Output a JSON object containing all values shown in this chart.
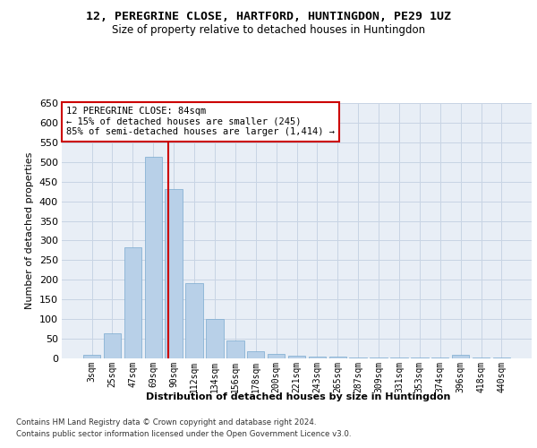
{
  "title": "12, PEREGRINE CLOSE, HARTFORD, HUNTINGDON, PE29 1UZ",
  "subtitle": "Size of property relative to detached houses in Huntingdon",
  "xlabel": "Distribution of detached houses by size in Huntingdon",
  "ylabel": "Number of detached properties",
  "bar_color": "#b8d0e8",
  "bar_edge_color": "#7aaacf",
  "categories": [
    "3sqm",
    "25sqm",
    "47sqm",
    "69sqm",
    "90sqm",
    "112sqm",
    "134sqm",
    "156sqm",
    "178sqm",
    "200sqm",
    "221sqm",
    "243sqm",
    "265sqm",
    "287sqm",
    "309sqm",
    "331sqm",
    "353sqm",
    "374sqm",
    "396sqm",
    "418sqm",
    "440sqm"
  ],
  "values": [
    10,
    65,
    282,
    513,
    432,
    192,
    101,
    46,
    18,
    12,
    7,
    5,
    4,
    3,
    3,
    3,
    2,
    2,
    8,
    3,
    3
  ],
  "ylim": [
    0,
    650
  ],
  "yticks": [
    0,
    50,
    100,
    150,
    200,
    250,
    300,
    350,
    400,
    450,
    500,
    550,
    600,
    650
  ],
  "vline_color": "#cc0000",
  "vline_pos": 3.714,
  "annotation_text": "12 PEREGRINE CLOSE: 84sqm\n← 15% of detached houses are smaller (245)\n85% of semi-detached houses are larger (1,414) →",
  "annotation_box_color": "#ffffff",
  "annotation_box_edge": "#cc0000",
  "footer1": "Contains HM Land Registry data © Crown copyright and database right 2024.",
  "footer2": "Contains public sector information licensed under the Open Government Licence v3.0.",
  "background_color": "#e8eef6",
  "grid_color": "#c8d4e4"
}
